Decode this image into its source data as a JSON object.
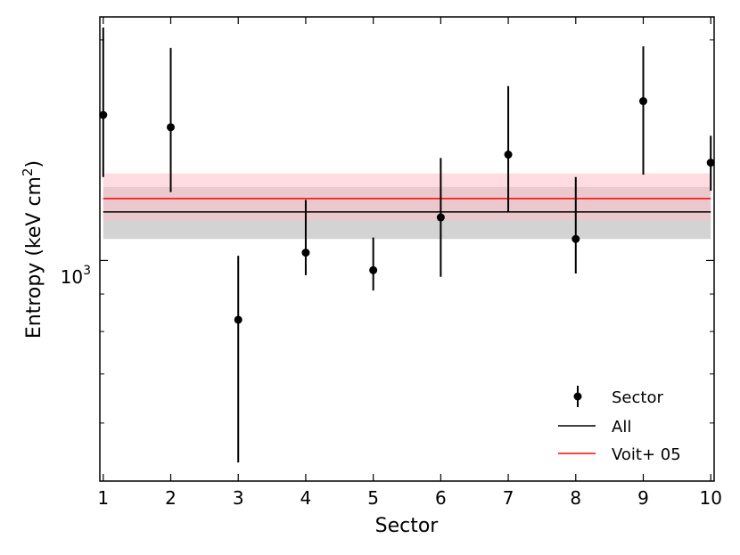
{
  "chart_data": {
    "type": "scatter",
    "xlabel": "Sector",
    "ylabel": "Entropy (keV cm",
    "ylabel_superscript": "2",
    "ylabel_close": ")",
    "yscale": "log",
    "xlim": [
      0.95,
      10.05
    ],
    "ylim": [
      500,
      2150
    ],
    "x_ticks": [
      1,
      2,
      3,
      4,
      5,
      6,
      7,
      8,
      9,
      10
    ],
    "y_tick_label": {
      "base": "10",
      "exponent": "3",
      "value": 1000
    },
    "series": [
      {
        "name": "Sector",
        "x": [
          1,
          2,
          3,
          4,
          5,
          6,
          7,
          8,
          9,
          10
        ],
        "y": [
          1580,
          1520,
          830,
          1025,
          970,
          1145,
          1395,
          1070,
          1650,
          1360
        ],
        "y_err_low": [
          1300,
          1240,
          530,
          955,
          910,
          950,
          1165,
          960,
          1310,
          1245
        ],
        "y_err_high": [
          2080,
          1950,
          1015,
          1210,
          1075,
          1380,
          1730,
          1300,
          1960,
          1480
        ]
      },
      {
        "name": "All",
        "type": "line",
        "value": 1165,
        "band": [
          1070,
          1260
        ],
        "color": "#000000",
        "band_color": "#d3d3d3"
      },
      {
        "name": "Voit+ 05",
        "type": "line",
        "value": 1215,
        "band": [
          1135,
          1315
        ],
        "color": "#ff0000",
        "band_color": "#ffc0c8"
      }
    ],
    "legend": {
      "position": "lower-right",
      "entries": [
        "Sector",
        "All",
        "Voit+ 05"
      ]
    },
    "grid": false
  }
}
